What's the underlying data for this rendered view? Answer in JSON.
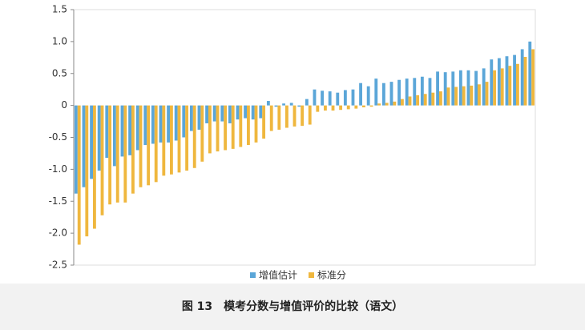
{
  "chart_data": {
    "type": "bar",
    "title": "图 13　模考分数与增值评价的比较（语文）",
    "categories": [
      null,
      null,
      null,
      null,
      null,
      null,
      null,
      null,
      null,
      null,
      null,
      null,
      null,
      null,
      null,
      null,
      null,
      null,
      null,
      null,
      null,
      null,
      null,
      null,
      null,
      null,
      null,
      null,
      null,
      null,
      null,
      null,
      null,
      null,
      null,
      null,
      null,
      null,
      null,
      null,
      null,
      null,
      null,
      null,
      null,
      null,
      null,
      null,
      null,
      null,
      null,
      null,
      null,
      null,
      null,
      null,
      null,
      null,
      null,
      null
    ],
    "series": [
      {
        "name": "增值估计",
        "color": "#5ba6d8",
        "values": [
          -1.38,
          -1.28,
          -1.15,
          -1.02,
          -0.82,
          -0.95,
          -0.8,
          -0.78,
          -0.7,
          -0.62,
          -0.6,
          -0.58,
          -0.58,
          -0.55,
          -0.5,
          -0.4,
          -0.38,
          -0.28,
          -0.25,
          -0.25,
          -0.28,
          -0.22,
          -0.2,
          -0.22,
          -0.2,
          0.07,
          -0.02,
          0.03,
          0.04,
          -0.02,
          0.1,
          0.25,
          0.23,
          0.22,
          0.2,
          0.24,
          0.25,
          0.35,
          0.3,
          0.42,
          0.35,
          0.37,
          0.4,
          0.42,
          0.43,
          0.45,
          0.43,
          0.53,
          0.52,
          0.53,
          0.55,
          0.55,
          0.54,
          0.58,
          0.72,
          0.74,
          0.77,
          0.79,
          0.88,
          1.0
        ]
      },
      {
        "name": "标准分",
        "color": "#efb73e",
        "values": [
          -2.18,
          -2.05,
          -1.93,
          -1.72,
          -1.55,
          -1.52,
          -1.52,
          -1.38,
          -1.28,
          -1.25,
          -1.2,
          -1.1,
          -1.08,
          -1.05,
          -1.02,
          -0.98,
          -0.88,
          -0.75,
          -0.72,
          -0.7,
          -0.68,
          -0.65,
          -0.62,
          -0.58,
          -0.52,
          -0.4,
          -0.38,
          -0.35,
          -0.33,
          -0.32,
          -0.3,
          -0.1,
          -0.08,
          -0.08,
          -0.07,
          -0.06,
          -0.05,
          -0.03,
          -0.02,
          0.03,
          0.04,
          0.06,
          0.1,
          0.14,
          0.16,
          0.18,
          0.2,
          0.22,
          0.28,
          0.29,
          0.3,
          0.31,
          0.33,
          0.37,
          0.55,
          0.58,
          0.62,
          0.65,
          0.76,
          0.88
        ]
      }
    ],
    "ylim": [
      -2.5,
      1.5
    ],
    "yticks": [
      1.5,
      {
        "value": 1,
        "label": "1.0"
      },
      0.5,
      0,
      -0.5,
      {
        "value": -1,
        "label": "-1.0"
      },
      -1.5,
      {
        "value": -2,
        "label": "-2.0"
      },
      -2.5
    ],
    "legend": "bottom"
  }
}
